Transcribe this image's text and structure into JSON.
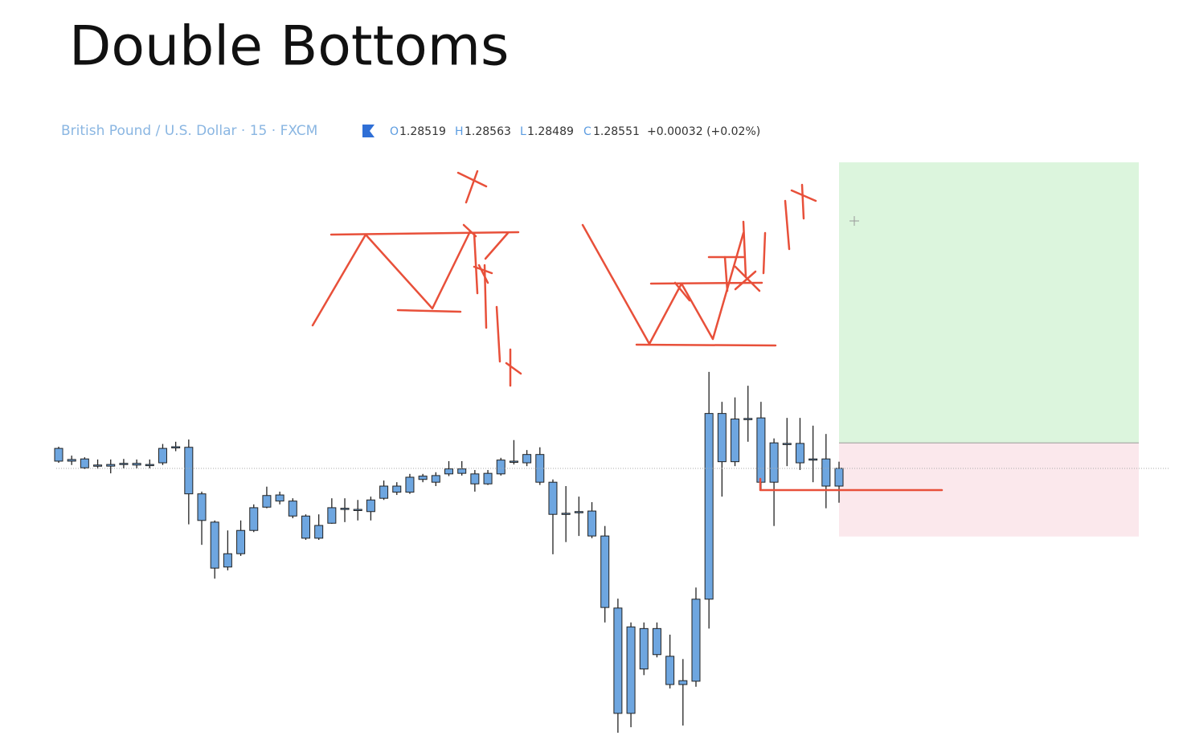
{
  "chart_data": {
    "type": "candlestick",
    "title": "Double Bottoms",
    "symbol": "British Pound / U.S. Dollar · 15 · FXCM",
    "legend": [
      {
        "label": "O",
        "value": 1.28519
      },
      {
        "label": "H",
        "value": 1.28563
      },
      {
        "label": "L",
        "value": 1.28489
      },
      {
        "label": "C",
        "value": 1.28551
      }
    ],
    "change": "+0.00032 (+0.02%)",
    "color": "#6ea6e0",
    "ylim": [
      1.28048,
      1.29106
    ],
    "open": [
      1.28587,
      1.28567,
      1.28568,
      1.28557,
      1.28558,
      1.2856,
      1.2856,
      1.28558,
      1.28561,
      1.28589,
      1.28589,
      1.28505,
      1.28454,
      1.28373,
      1.28397,
      1.28439,
      1.28481,
      1.28492,
      1.28492,
      1.28465,
      1.28425,
      1.28452,
      1.28477,
      1.28476,
      1.28473,
      1.28497,
      1.28508,
      1.28508,
      1.28531,
      1.28526,
      1.28541,
      1.2855,
      1.28541,
      1.28523,
      1.28541,
      1.28564,
      1.28561,
      1.28576,
      1.28526,
      1.28468,
      1.28473,
      1.28474,
      1.28429,
      1.28299,
      1.28109,
      1.28189,
      1.28262,
      1.28212,
      1.28161,
      1.28167,
      1.28315,
      1.2865,
      1.28563,
      1.2864,
      1.28642,
      1.28526,
      1.28596,
      1.28561,
      1.28567,
      1.28568,
      1.28519
    ],
    "close": [
      1.28564,
      1.28564,
      1.28552,
      1.28555,
      1.28555,
      1.28558,
      1.28557,
      1.28557,
      1.28587,
      1.2859,
      1.28505,
      1.28457,
      1.28371,
      1.28397,
      1.28439,
      1.2848,
      1.28502,
      1.28503,
      1.28465,
      1.28425,
      1.28448,
      1.2848,
      1.28479,
      1.28477,
      1.28494,
      1.28519,
      1.28519,
      1.28535,
      1.28537,
      1.28538,
      1.2855,
      1.28542,
      1.28523,
      1.28542,
      1.28566,
      1.28563,
      1.28576,
      1.28526,
      1.28468,
      1.2847,
      1.28471,
      1.28429,
      1.283,
      1.28109,
      1.28265,
      1.28262,
      1.28215,
      1.28161,
      1.28168,
      1.28315,
      1.2865,
      1.28563,
      1.2864,
      1.28641,
      1.28526,
      1.28597,
      1.28595,
      1.28596,
      1.28568,
      1.28519,
      1.28551
    ],
    "high": [
      1.2859,
      1.28574,
      1.28571,
      1.28567,
      1.28567,
      1.28568,
      1.28567,
      1.28567,
      1.28595,
      1.28599,
      1.28603,
      1.28509,
      1.28457,
      1.28439,
      1.28457,
      1.28486,
      1.28518,
      1.28509,
      1.28497,
      1.28468,
      1.28468,
      1.28497,
      1.28497,
      1.28494,
      1.285,
      1.28529,
      1.28526,
      1.28541,
      1.28541,
      1.28544,
      1.28564,
      1.28564,
      1.28548,
      1.28548,
      1.2857,
      1.28602,
      1.28584,
      1.28589,
      1.28531,
      1.28519,
      1.285,
      1.2849,
      1.28447,
      1.28316,
      1.28273,
      1.28273,
      1.28273,
      1.28251,
      1.28207,
      1.28336,
      1.28725,
      1.28671,
      1.28679,
      1.287,
      1.28671,
      1.28605,
      1.28642,
      1.28642,
      1.28628,
      1.28613,
      1.28563
    ],
    "low": [
      1.28561,
      1.28557,
      1.2855,
      1.2855,
      1.28542,
      1.28551,
      1.28551,
      1.28551,
      1.28557,
      1.28582,
      1.2845,
      1.28413,
      1.28352,
      1.28367,
      1.28393,
      1.28436,
      1.28479,
      1.28486,
      1.28461,
      1.28422,
      1.28422,
      1.28451,
      1.28454,
      1.28457,
      1.28457,
      1.28494,
      1.28503,
      1.28505,
      1.28526,
      1.28519,
      1.28537,
      1.28538,
      1.28509,
      1.28521,
      1.28538,
      1.28558,
      1.28555,
      1.28521,
      1.28396,
      1.28418,
      1.28429,
      1.28425,
      1.28273,
      1.28074,
      1.28084,
      1.28178,
      1.2821,
      1.28154,
      1.28087,
      1.28157,
      1.28262,
      1.285,
      1.28555,
      1.28599,
      1.28512,
      1.28447,
      1.28555,
      1.28548,
      1.28526,
      1.28479,
      1.28489
    ],
    "position": {
      "entry": 1.28597,
      "target": 1.29103,
      "stop": 1.28428,
      "target_color": "#dcf5dd",
      "stop_color": "#fbe8ec"
    }
  }
}
